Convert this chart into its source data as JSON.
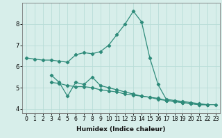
{
  "xlabel": "Humidex (Indice chaleur)",
  "bg_color": "#d7eeea",
  "grid_color": "#b8ddd8",
  "line_color": "#2e8b7a",
  "x": [
    0,
    1,
    2,
    3,
    4,
    5,
    6,
    7,
    8,
    9,
    10,
    11,
    12,
    13,
    14,
    15,
    16,
    17,
    18,
    19,
    20,
    21,
    22,
    23
  ],
  "series2": [
    6.4,
    6.35,
    6.3,
    6.3,
    6.25,
    6.2,
    6.55,
    6.65,
    6.6,
    6.7,
    7.0,
    7.5,
    8.0,
    8.6,
    8.1,
    6.4,
    5.15,
    4.45,
    4.4,
    4.35,
    4.3,
    4.25,
    4.2,
    4.2
  ],
  "series3_x": [
    3,
    4,
    5,
    6,
    7,
    8,
    9,
    10,
    11,
    12,
    13,
    14,
    15,
    16,
    17,
    18,
    19,
    20,
    21,
    22
  ],
  "series3_y": [
    5.6,
    5.25,
    4.6,
    5.25,
    5.15,
    5.5,
    5.1,
    5.0,
    4.9,
    4.8,
    4.7,
    4.6,
    4.55,
    4.45,
    4.4,
    4.35,
    4.3,
    4.25,
    4.2,
    4.2
  ],
  "series4_x": [
    3,
    4,
    5,
    6,
    7,
    8,
    9,
    10,
    11,
    12,
    13,
    14,
    15,
    16,
    17,
    18,
    19,
    20,
    21,
    22
  ],
  "series4_y": [
    5.25,
    5.2,
    5.1,
    5.05,
    5.05,
    5.0,
    4.9,
    4.85,
    4.8,
    4.7,
    4.65,
    4.6,
    4.55,
    4.5,
    4.4,
    4.35,
    4.3,
    4.25,
    4.2,
    4.2
  ],
  "ylim": [
    3.8,
    9.0
  ],
  "yticks": [
    4,
    5,
    6,
    7,
    8
  ],
  "xticks": [
    0,
    1,
    2,
    3,
    4,
    5,
    6,
    7,
    8,
    9,
    10,
    11,
    12,
    13,
    14,
    15,
    16,
    17,
    18,
    19,
    20,
    21,
    22,
    23
  ],
  "tick_fontsize": 5.5,
  "label_fontsize": 6.5
}
